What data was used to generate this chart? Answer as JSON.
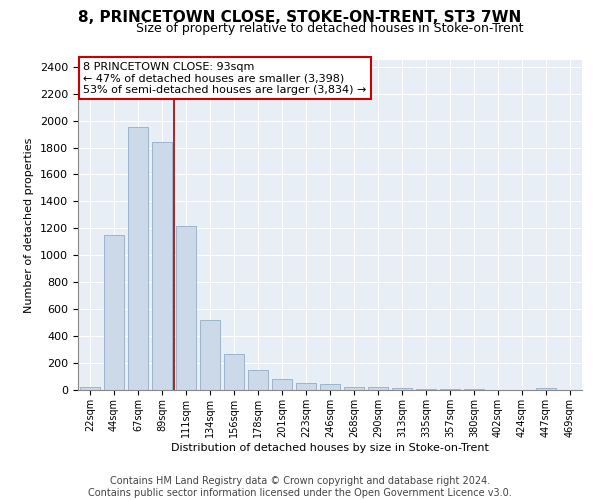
{
  "title": "8, PRINCETOWN CLOSE, STOKE-ON-TRENT, ST3 7WN",
  "subtitle": "Size of property relative to detached houses in Stoke-on-Trent",
  "xlabel": "Distribution of detached houses by size in Stoke-on-Trent",
  "ylabel": "Number of detached properties",
  "categories": [
    "22sqm",
    "44sqm",
    "67sqm",
    "89sqm",
    "111sqm",
    "134sqm",
    "156sqm",
    "178sqm",
    "201sqm",
    "223sqm",
    "246sqm",
    "268sqm",
    "290sqm",
    "313sqm",
    "335sqm",
    "357sqm",
    "380sqm",
    "402sqm",
    "424sqm",
    "447sqm",
    "469sqm"
  ],
  "values": [
    25,
    1150,
    1950,
    1840,
    1220,
    520,
    265,
    150,
    85,
    50,
    42,
    20,
    20,
    12,
    8,
    8,
    8,
    3,
    3,
    18,
    3
  ],
  "bar_color": "#ccd9e8",
  "bar_edge_color": "#9db5cc",
  "vline_x": 3.5,
  "vline_color": "#aa1111",
  "annotation_text": "8 PRINCETOWN CLOSE: 93sqm\n← 47% of detached houses are smaller (3,398)\n53% of semi-detached houses are larger (3,834) →",
  "annotation_box_color": "white",
  "annotation_box_edge_color": "#cc0000",
  "ylim": [
    0,
    2450
  ],
  "yticks": [
    0,
    200,
    400,
    600,
    800,
    1000,
    1200,
    1400,
    1600,
    1800,
    2000,
    2200,
    2400
  ],
  "background_color": "#e8eef5",
  "footer": "Contains HM Land Registry data © Crown copyright and database right 2024.\nContains public sector information licensed under the Open Government Licence v3.0.",
  "title_fontsize": 11,
  "subtitle_fontsize": 9,
  "annotation_fontsize": 8,
  "footer_fontsize": 7,
  "ylabel_fontsize": 8,
  "xlabel_fontsize": 8
}
